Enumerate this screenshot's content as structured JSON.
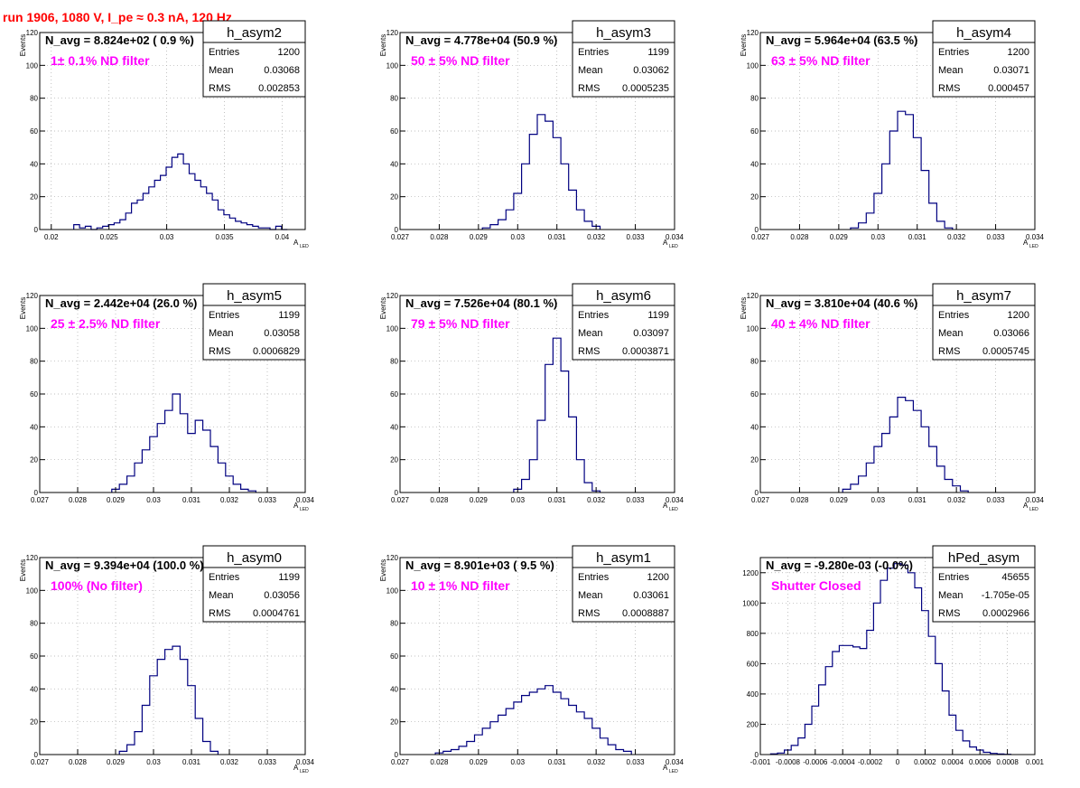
{
  "header": {
    "title": "run 1906,  1080 V, I_pe ≈ 0.3 nA, 120 Hz",
    "color": "#ff0000"
  },
  "colors": {
    "line": "#000080",
    "grid": "#aaaaaa",
    "axis": "#000000",
    "annotation": "#ff00ff",
    "text": "#000000"
  },
  "stats_labels": {
    "entries": "Entries",
    "mean": "Mean",
    "rms": "RMS"
  },
  "chart_data": [
    {
      "type": "histogram",
      "name": "h_asym2",
      "navg": "N_avg = 8.824e+02 ( 0.9 %)",
      "annotation": "1± 0.1% ND filter",
      "ylabel": "Events",
      "xlabel": "A",
      "xlabel_sub": "LED",
      "stats": {
        "entries": "1200",
        "mean": "0.03068",
        "rms": "0.002853"
      },
      "xlim": [
        0.019,
        0.042
      ],
      "ylim": [
        0,
        120
      ],
      "xticks": [
        0.02,
        0.025,
        0.03,
        0.035,
        0.04
      ],
      "xticklabels": [
        "0.02",
        "0.025",
        "0.03",
        "0.035",
        "0.04"
      ],
      "yticks": [
        0,
        20,
        40,
        60,
        80,
        100,
        120
      ],
      "yticklabels": [
        "0",
        "20",
        "40",
        "60",
        "80",
        "100",
        "120"
      ],
      "x": [
        0.0222,
        0.0227,
        0.0232,
        0.0237,
        0.0242,
        0.0247,
        0.0252,
        0.0257,
        0.0262,
        0.0267,
        0.0272,
        0.0277,
        0.0282,
        0.0287,
        0.0292,
        0.0297,
        0.0302,
        0.0307,
        0.0312,
        0.0317,
        0.0322,
        0.0327,
        0.0332,
        0.0337,
        0.0342,
        0.0347,
        0.0352,
        0.0357,
        0.0362,
        0.0367,
        0.0372,
        0.0377,
        0.0382,
        0.0387,
        0.0392,
        0.0397,
        0.0402
      ],
      "values": [
        3,
        1,
        2,
        0,
        1,
        2,
        3,
        4,
        6,
        10,
        16,
        18,
        22,
        26,
        30,
        33,
        38,
        44,
        46,
        40,
        34,
        30,
        26,
        22,
        18,
        12,
        9,
        7,
        5,
        4,
        3,
        2,
        1,
        1,
        0,
        2,
        0
      ]
    },
    {
      "type": "histogram",
      "name": "h_asym3",
      "navg": "N_avg = 4.778e+04 (50.9 %)",
      "annotation": "50 ± 5% ND filter",
      "ylabel": "Events",
      "xlabel": "A",
      "xlabel_sub": "LED",
      "stats": {
        "entries": "1199",
        "mean": "0.03062",
        "rms": "0.0005235"
      },
      "xlim": [
        0.027,
        0.034
      ],
      "ylim": [
        0,
        120
      ],
      "xticks": [
        0.027,
        0.028,
        0.029,
        0.03,
        0.031,
        0.032,
        0.033,
        0.034
      ],
      "xticklabels": [
        "0.027",
        "0.028",
        "0.029",
        "0.03",
        "0.031",
        "0.032",
        "0.033",
        "0.034"
      ],
      "yticks": [
        0,
        20,
        40,
        60,
        80,
        100,
        120
      ],
      "yticklabels": [
        "0",
        "20",
        "40",
        "60",
        "80",
        "100",
        "120"
      ],
      "x": [
        0.0292,
        0.0294,
        0.0296,
        0.0298,
        0.03,
        0.0302,
        0.0304,
        0.0306,
        0.0308,
        0.031,
        0.0312,
        0.0314,
        0.0316,
        0.0318,
        0.032
      ],
      "values": [
        1,
        3,
        6,
        12,
        22,
        40,
        58,
        70,
        66,
        56,
        40,
        24,
        12,
        5,
        2
      ]
    },
    {
      "type": "histogram",
      "name": "h_asym4",
      "navg": "N_avg = 5.964e+04 (63.5 %)",
      "annotation": "63 ± 5% ND filter",
      "ylabel": "Events",
      "xlabel": "A",
      "xlabel_sub": "LED",
      "stats": {
        "entries": "1200",
        "mean": "0.03071",
        "rms": "0.000457"
      },
      "xlim": [
        0.027,
        0.034
      ],
      "ylim": [
        0,
        120
      ],
      "xticks": [
        0.027,
        0.028,
        0.029,
        0.03,
        0.031,
        0.032,
        0.033,
        0.034
      ],
      "xticklabels": [
        "0.027",
        "0.028",
        "0.029",
        "0.03",
        "0.031",
        "0.032",
        "0.033",
        "0.034"
      ],
      "yticks": [
        0,
        20,
        40,
        60,
        80,
        100,
        120
      ],
      "yticklabels": [
        "0",
        "20",
        "40",
        "60",
        "80",
        "100",
        "120"
      ],
      "x": [
        0.0294,
        0.0296,
        0.0298,
        0.03,
        0.0302,
        0.0304,
        0.0306,
        0.0308,
        0.031,
        0.0312,
        0.0314,
        0.0316,
        0.0318
      ],
      "values": [
        1,
        4,
        10,
        22,
        40,
        60,
        72,
        70,
        56,
        36,
        16,
        5,
        1
      ]
    },
    {
      "type": "histogram",
      "name": "h_asym5",
      "navg": "N_avg = 2.442e+04 (26.0 %)",
      "annotation": "25 ± 2.5% ND filter",
      "ylabel": "Events",
      "xlabel": "A",
      "xlabel_sub": "LED",
      "stats": {
        "entries": "1199",
        "mean": "0.03058",
        "rms": "0.0006829"
      },
      "xlim": [
        0.027,
        0.034
      ],
      "ylim": [
        0,
        120
      ],
      "xticks": [
        0.027,
        0.028,
        0.029,
        0.03,
        0.031,
        0.032,
        0.033,
        0.034
      ],
      "xticklabels": [
        "0.027",
        "0.028",
        "0.029",
        "0.03",
        "0.031",
        "0.032",
        "0.033",
        "0.034"
      ],
      "yticks": [
        0,
        20,
        40,
        60,
        80,
        100,
        120
      ],
      "yticklabels": [
        "0",
        "20",
        "40",
        "60",
        "80",
        "100",
        "120"
      ],
      "x": [
        0.029,
        0.0292,
        0.0294,
        0.0296,
        0.0298,
        0.03,
        0.0302,
        0.0304,
        0.0306,
        0.0308,
        0.031,
        0.0312,
        0.0314,
        0.0316,
        0.0318,
        0.032,
        0.0322,
        0.0324,
        0.0326
      ],
      "values": [
        2,
        5,
        10,
        18,
        26,
        34,
        42,
        50,
        60,
        48,
        36,
        44,
        38,
        28,
        18,
        10,
        5,
        2,
        1
      ]
    },
    {
      "type": "histogram",
      "name": "h_asym6",
      "navg": "N_avg = 7.526e+04 (80.1 %)",
      "annotation": "79 ± 5% ND filter",
      "ylabel": "Events",
      "xlabel": "A",
      "xlabel_sub": "LED",
      "stats": {
        "entries": "1199",
        "mean": "0.03097",
        "rms": "0.0003871"
      },
      "xlim": [
        0.027,
        0.034
      ],
      "ylim": [
        0,
        120
      ],
      "xticks": [
        0.027,
        0.028,
        0.029,
        0.03,
        0.031,
        0.032,
        0.033,
        0.034
      ],
      "xticklabels": [
        "0.027",
        "0.028",
        "0.029",
        "0.03",
        "0.031",
        "0.032",
        "0.033",
        "0.034"
      ],
      "yticks": [
        0,
        20,
        40,
        60,
        80,
        100,
        120
      ],
      "yticklabels": [
        "0",
        "20",
        "40",
        "60",
        "80",
        "100",
        "120"
      ],
      "x": [
        0.03,
        0.0302,
        0.0304,
        0.0306,
        0.0308,
        0.031,
        0.0312,
        0.0314,
        0.0316,
        0.0318,
        0.032
      ],
      "values": [
        2,
        8,
        20,
        44,
        78,
        94,
        74,
        46,
        20,
        6,
        1
      ]
    },
    {
      "type": "histogram",
      "name": "h_asym7",
      "navg": "N_avg = 3.810e+04 (40.6 %)",
      "annotation": "40 ± 4% ND filter",
      "ylabel": "Events",
      "xlabel": "A",
      "xlabel_sub": "LED",
      "stats": {
        "entries": "1200",
        "mean": "0.03066",
        "rms": "0.0005745"
      },
      "xlim": [
        0.027,
        0.034
      ],
      "ylim": [
        0,
        120
      ],
      "xticks": [
        0.027,
        0.028,
        0.029,
        0.03,
        0.031,
        0.032,
        0.033,
        0.034
      ],
      "xticklabels": [
        "0.027",
        "0.028",
        "0.029",
        "0.03",
        "0.031",
        "0.032",
        "0.033",
        "0.034"
      ],
      "yticks": [
        0,
        20,
        40,
        60,
        80,
        100,
        120
      ],
      "yticklabels": [
        "0",
        "20",
        "40",
        "60",
        "80",
        "100",
        "120"
      ],
      "x": [
        0.0292,
        0.0294,
        0.0296,
        0.0298,
        0.03,
        0.0302,
        0.0304,
        0.0306,
        0.0308,
        0.031,
        0.0312,
        0.0314,
        0.0316,
        0.0318,
        0.032,
        0.0322
      ],
      "values": [
        2,
        5,
        10,
        18,
        28,
        36,
        46,
        58,
        56,
        50,
        40,
        28,
        16,
        8,
        4,
        1
      ]
    },
    {
      "type": "histogram",
      "name": "h_asym0",
      "navg": "N_avg = 9.394e+04 (100.0 %)",
      "annotation": "100% (No filter)",
      "ylabel": "Events",
      "xlabel": "A",
      "xlabel_sub": "LED",
      "stats": {
        "entries": "1199",
        "mean": "0.03056",
        "rms": "0.0004761"
      },
      "xlim": [
        0.027,
        0.034
      ],
      "ylim": [
        0,
        120
      ],
      "xticks": [
        0.027,
        0.028,
        0.029,
        0.03,
        0.031,
        0.032,
        0.033,
        0.034
      ],
      "xticklabels": [
        "0.027",
        "0.028",
        "0.029",
        "0.03",
        "0.031",
        "0.032",
        "0.033",
        "0.034"
      ],
      "yticks": [
        0,
        20,
        40,
        60,
        80,
        100,
        120
      ],
      "yticklabels": [
        "0",
        "20",
        "40",
        "60",
        "80",
        "100",
        "120"
      ],
      "x": [
        0.0292,
        0.0294,
        0.0296,
        0.0298,
        0.03,
        0.0302,
        0.0304,
        0.0306,
        0.0308,
        0.031,
        0.0312,
        0.0314,
        0.0316
      ],
      "values": [
        2,
        6,
        14,
        30,
        48,
        58,
        64,
        66,
        58,
        42,
        22,
        8,
        2
      ]
    },
    {
      "type": "histogram",
      "name": "h_asym1",
      "navg": "N_avg = 8.901e+03 ( 9.5 %)",
      "annotation": "10 ± 1% ND filter",
      "ylabel": "Events",
      "xlabel": "A",
      "xlabel_sub": "LED",
      "stats": {
        "entries": "1200",
        "mean": "0.03061",
        "rms": "0.0008887"
      },
      "xlim": [
        0.027,
        0.034
      ],
      "ylim": [
        0,
        120
      ],
      "xticks": [
        0.027,
        0.028,
        0.029,
        0.03,
        0.031,
        0.032,
        0.033,
        0.034
      ],
      "xticklabels": [
        "0.027",
        "0.028",
        "0.029",
        "0.03",
        "0.031",
        "0.032",
        "0.033",
        "0.034"
      ],
      "yticks": [
        0,
        20,
        40,
        60,
        80,
        100,
        120
      ],
      "yticklabels": [
        "0",
        "20",
        "40",
        "60",
        "80",
        "100",
        "120"
      ],
      "x": [
        0.028,
        0.0282,
        0.0284,
        0.0286,
        0.0288,
        0.029,
        0.0292,
        0.0294,
        0.0296,
        0.0298,
        0.03,
        0.0302,
        0.0304,
        0.0306,
        0.0308,
        0.031,
        0.0312,
        0.0314,
        0.0316,
        0.0318,
        0.032,
        0.0322,
        0.0324,
        0.0326,
        0.0328
      ],
      "values": [
        1,
        2,
        3,
        5,
        8,
        12,
        16,
        20,
        24,
        28,
        32,
        36,
        38,
        40,
        42,
        38,
        34,
        30,
        26,
        22,
        16,
        10,
        6,
        3,
        2
      ]
    },
    {
      "type": "histogram",
      "name": "hPed_asym",
      "navg": "N_avg = -9.280e-03 (-0.0%)",
      "annotation": "Shutter Closed",
      "ylabel": "",
      "xlabel": "",
      "xlabel_sub": "",
      "stats": {
        "entries": "45655",
        "mean": "-1.705e-05",
        "rms": "0.0002966"
      },
      "xlim": [
        -0.001,
        0.001
      ],
      "ylim": [
        0,
        1300
      ],
      "xticks": [
        -0.001,
        -0.0008,
        -0.0006,
        -0.0004,
        -0.0002,
        0,
        0.0002,
        0.0004,
        0.0006,
        0.0008,
        0.001
      ],
      "xticklabels": [
        "-0.001",
        "-0.0008",
        "-0.0006",
        "-0.0004",
        "-0.0002",
        "0",
        "0.0002",
        "0.0004",
        "0.0006",
        "0.0008",
        "0.001"
      ],
      "yticks": [
        0,
        200,
        400,
        600,
        800,
        1000,
        1200
      ],
      "yticklabels": [
        "0",
        "200",
        "400",
        "600",
        "800",
        "1000",
        "1200"
      ],
      "x": [
        -0.0009,
        -0.00085,
        -0.0008,
        -0.00075,
        -0.0007,
        -0.00065,
        -0.0006,
        -0.00055,
        -0.0005,
        -0.00045,
        -0.0004,
        -0.00035,
        -0.0003,
        -0.00025,
        -0.0002,
        -0.00015,
        -0.0001,
        -5e-05,
        0.0,
        5e-05,
        0.0001,
        0.00015,
        0.0002,
        0.00025,
        0.0003,
        0.00035,
        0.0004,
        0.00045,
        0.0005,
        0.00055,
        0.0006,
        0.00065,
        0.0007,
        0.00075,
        0.0008
      ],
      "values": [
        5,
        10,
        30,
        60,
        110,
        200,
        320,
        460,
        580,
        680,
        720,
        720,
        710,
        700,
        820,
        1000,
        1150,
        1230,
        1260,
        1250,
        1200,
        1100,
        950,
        780,
        600,
        420,
        260,
        160,
        90,
        50,
        30,
        15,
        8,
        4,
        2
      ]
    }
  ]
}
